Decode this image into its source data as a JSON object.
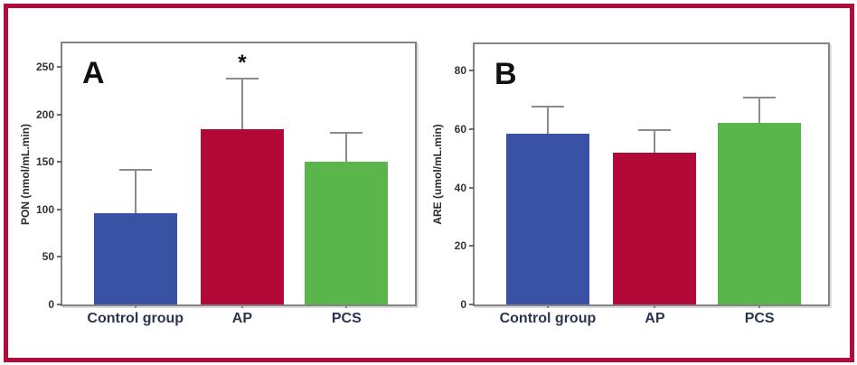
{
  "figure": {
    "frame_border_color": "#b00c3c",
    "background_color": "#ffffff",
    "plot_border_color": "#848484",
    "error_bar_color": "#8c8c8c"
  },
  "chart_data": [
    {
      "type": "bar",
      "panel_label": "A",
      "title": "",
      "xlabel": "",
      "ylabel": "PON (nmol/mL.min)",
      "categories": [
        "Control group",
        "AP",
        "PCS"
      ],
      "values": [
        96,
        185,
        150
      ],
      "errors_up": [
        47,
        54,
        32
      ],
      "error_bar_tops": [
        143,
        239,
        182
      ],
      "bar_colors": [
        "#3a52a3",
        "#b30939",
        "#5ab64a"
      ],
      "ylim": [
        0,
        275
      ],
      "yticks": [
        0,
        50,
        100,
        150,
        200,
        250
      ],
      "grid": false,
      "legend": "none",
      "annotations": [
        {
          "category_index": 1,
          "text": "*",
          "meaning": "significant"
        }
      ]
    },
    {
      "type": "bar",
      "panel_label": "B",
      "title": "",
      "xlabel": "",
      "ylabel": "ARE (umol/mL.min)",
      "categories": [
        "Control group",
        "AP",
        "PCS"
      ],
      "values": [
        58.5,
        52,
        62
      ],
      "errors_up": [
        9.5,
        8,
        9
      ],
      "error_bar_tops": [
        68,
        60,
        71
      ],
      "bar_colors": [
        "#3a52a3",
        "#b30939",
        "#5ab64a"
      ],
      "ylim": [
        0,
        89
      ],
      "yticks": [
        0,
        20,
        40,
        60,
        80
      ],
      "grid": false,
      "legend": "none",
      "annotations": []
    }
  ]
}
